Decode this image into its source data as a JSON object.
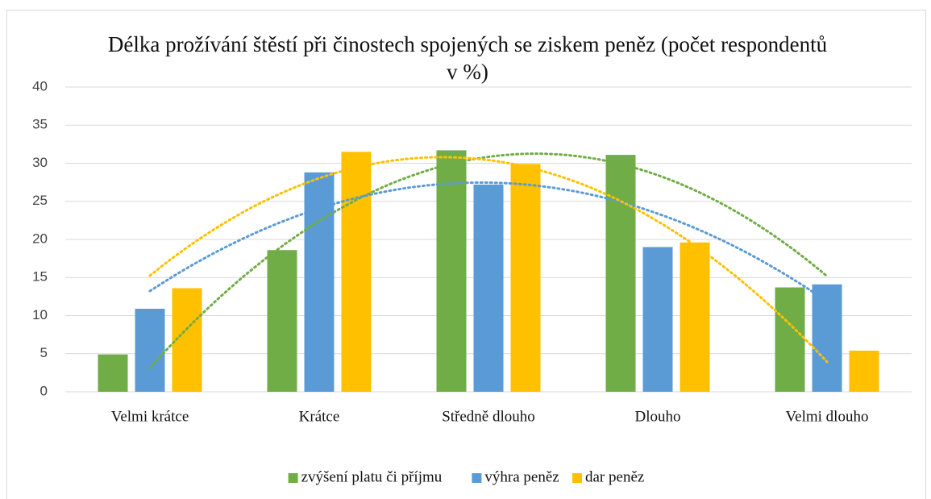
{
  "chart_data": {
    "type": "bar",
    "title": "Délka prožívání štěstí při činostech spojených se ziskem peněz (počet respondentů v %)",
    "categories": [
      "Velmi krátce",
      "Krátce",
      "Středně dlouho",
      "Dlouho",
      "Velmi dlouho"
    ],
    "series": [
      {
        "name": "zvýšení platu či příjmu",
        "color": "#70ad47",
        "values": [
          4.9,
          18.6,
          31.7,
          31.1,
          13.7
        ]
      },
      {
        "name": "výhra peněz",
        "color": "#5b9bd5",
        "values": [
          10.9,
          28.8,
          27.2,
          19.0,
          14.1
        ]
      },
      {
        "name": "dar peněz",
        "color": "#ffc000",
        "values": [
          13.6,
          31.5,
          29.9,
          19.6,
          5.4
        ]
      }
    ],
    "ylim": [
      0,
      40
    ],
    "yticks": [
      0,
      5,
      10,
      15,
      20,
      25,
      30,
      35,
      40
    ],
    "grid": true,
    "trendline": "polynomial",
    "legend": "bottom"
  }
}
